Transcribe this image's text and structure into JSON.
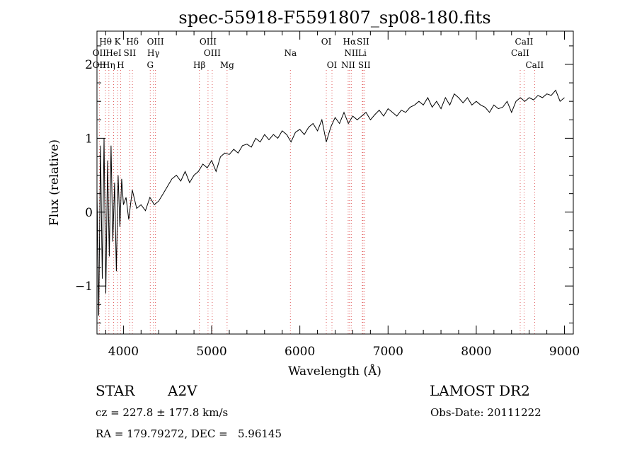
{
  "chart_data": {
    "type": "line",
    "title": "spec-55918-F5591807_sp08-180.fits",
    "xlabel": "Wavelength (Å)",
    "ylabel": "Flux (relative)",
    "xlim": [
      3700,
      9100
    ],
    "ylim": [
      -1.65,
      2.45
    ],
    "x_ticks": [
      4000,
      5000,
      6000,
      7000,
      8000,
      9000
    ],
    "y_ticks": [
      -1,
      0,
      1,
      2
    ],
    "grid": false,
    "series": [
      {
        "color": "#000000",
        "x": [
          3700,
          3720,
          3740,
          3760,
          3780,
          3800,
          3820,
          3840,
          3860,
          3880,
          3900,
          3920,
          3940,
          3960,
          3980,
          4000,
          4030,
          4060,
          4100,
          4150,
          4200,
          4250,
          4300,
          4350,
          4400,
          4450,
          4500,
          4550,
          4600,
          4650,
          4700,
          4750,
          4800,
          4850,
          4900,
          4950,
          5000,
          5050,
          5100,
          5150,
          5200,
          5250,
          5300,
          5350,
          5400,
          5450,
          5500,
          5550,
          5600,
          5650,
          5700,
          5750,
          5800,
          5850,
          5900,
          5950,
          6000,
          6050,
          6100,
          6150,
          6200,
          6250,
          6300,
          6350,
          6400,
          6450,
          6500,
          6550,
          6600,
          6650,
          6700,
          6750,
          6800,
          6850,
          6900,
          6950,
          7000,
          7050,
          7100,
          7150,
          7200,
          7250,
          7300,
          7350,
          7400,
          7450,
          7500,
          7550,
          7600,
          7650,
          7700,
          7750,
          7800,
          7850,
          7900,
          7950,
          8000,
          8050,
          8100,
          8150,
          8200,
          8250,
          8300,
          8350,
          8400,
          8450,
          8500,
          8550,
          8600,
          8650,
          8700,
          8750,
          8800,
          8850,
          8900,
          8950,
          9000
        ],
        "y": [
          0.3,
          -1.4,
          0.9,
          -0.9,
          1.0,
          -1.1,
          0.7,
          -0.6,
          0.9,
          -0.4,
          0.4,
          -0.8,
          0.5,
          -0.2,
          0.45,
          0.1,
          0.2,
          -0.1,
          0.3,
          0.05,
          0.1,
          0.02,
          0.2,
          0.1,
          0.15,
          0.25,
          0.35,
          0.45,
          0.5,
          0.42,
          0.55,
          0.4,
          0.5,
          0.55,
          0.65,
          0.6,
          0.7,
          0.55,
          0.75,
          0.8,
          0.78,
          0.85,
          0.8,
          0.9,
          0.92,
          0.88,
          1.0,
          0.95,
          1.05,
          0.98,
          1.05,
          1.0,
          1.1,
          1.05,
          0.95,
          1.08,
          1.12,
          1.05,
          1.15,
          1.2,
          1.1,
          1.25,
          0.95,
          1.15,
          1.28,
          1.2,
          1.35,
          1.2,
          1.3,
          1.25,
          1.3,
          1.35,
          1.25,
          1.32,
          1.38,
          1.3,
          1.4,
          1.35,
          1.3,
          1.38,
          1.35,
          1.42,
          1.45,
          1.5,
          1.45,
          1.55,
          1.42,
          1.5,
          1.4,
          1.55,
          1.45,
          1.6,
          1.55,
          1.48,
          1.55,
          1.45,
          1.5,
          1.45,
          1.42,
          1.35,
          1.45,
          1.4,
          1.42,
          1.5,
          1.35,
          1.5,
          1.55,
          1.5,
          1.55,
          1.52,
          1.58,
          1.55,
          1.6,
          1.58,
          1.65,
          1.5,
          1.55
        ]
      }
    ],
    "spectral_lines": [
      {
        "label": "Hθ",
        "x": 3797,
        "row": 0,
        "color": "#e05a5a"
      },
      {
        "label": "K",
        "x": 3934,
        "row": 0,
        "color": "#e05a5a"
      },
      {
        "label": "Hδ",
        "x": 4102,
        "row": 0,
        "color": "#e05a5a"
      },
      {
        "label": "OIII",
        "x": 4363,
        "row": 0,
        "color": "#e05a5a"
      },
      {
        "label": "OIII",
        "x": 4959,
        "row": 0,
        "color": "#e05a5a"
      },
      {
        "label": "OI",
        "x": 6300,
        "row": 0,
        "color": "#e05a5a"
      },
      {
        "label": "Hα",
        "x": 6563,
        "row": 0,
        "color": "#e05a5a"
      },
      {
        "label": "SII",
        "x": 6716,
        "row": 0,
        "color": "#e05a5a"
      },
      {
        "label": "CaII",
        "x": 8542,
        "row": 0,
        "color": "#e05a5a"
      },
      {
        "label": "OII",
        "x": 3727,
        "row": 1,
        "color": "#e05a5a"
      },
      {
        "label": "HeI",
        "x": 3889,
        "row": 1,
        "color": "#e05a5a"
      },
      {
        "label": "SII",
        "x": 4072,
        "row": 1,
        "color": "#e05a5a"
      },
      {
        "label": "Hγ",
        "x": 4340,
        "row": 1,
        "color": "#e05a5a"
      },
      {
        "label": "OIII",
        "x": 5007,
        "row": 1,
        "color": "#e05a5a"
      },
      {
        "label": "Na",
        "x": 5893,
        "row": 1,
        "color": "#e05a5a"
      },
      {
        "label": "NII",
        "x": 6583,
        "row": 1,
        "color": "#e05a5a"
      },
      {
        "label": "Li",
        "x": 6708,
        "row": 1,
        "color": "#e05a5a"
      },
      {
        "label": "CaII",
        "x": 8498,
        "row": 1,
        "color": "#e05a5a"
      },
      {
        "label": "OII",
        "x": 3727,
        "row": 2,
        "color": "#e05a5a"
      },
      {
        "label": "Hη",
        "x": 3835,
        "row": 2,
        "color": "#e05a5a"
      },
      {
        "label": "H",
        "x": 3968,
        "row": 2,
        "color": "#e05a5a"
      },
      {
        "label": "G",
        "x": 4304,
        "row": 2,
        "color": "#e05a5a"
      },
      {
        "label": "Hβ",
        "x": 4861,
        "row": 2,
        "color": "#e05a5a"
      },
      {
        "label": "Mg",
        "x": 5175,
        "row": 2,
        "color": "#e05a5a"
      },
      {
        "label": "OI",
        "x": 6364,
        "row": 2,
        "color": "#e05a5a"
      },
      {
        "label": "NII",
        "x": 6548,
        "row": 2,
        "color": "#e05a5a"
      },
      {
        "label": "SII",
        "x": 6731,
        "row": 2,
        "color": "#e05a5a"
      },
      {
        "label": "CaII",
        "x": 8662,
        "row": 2,
        "color": "#e05a5a"
      }
    ]
  },
  "info": {
    "object_class": "STAR",
    "subclass": "A2V",
    "survey": "LAMOST DR2",
    "redshift": "cz = 227.8 ± 177.8 km/s",
    "obs_date": "Obs-Date: 20111222",
    "coords": "RA = 179.79272, DEC =   5.96145"
  }
}
